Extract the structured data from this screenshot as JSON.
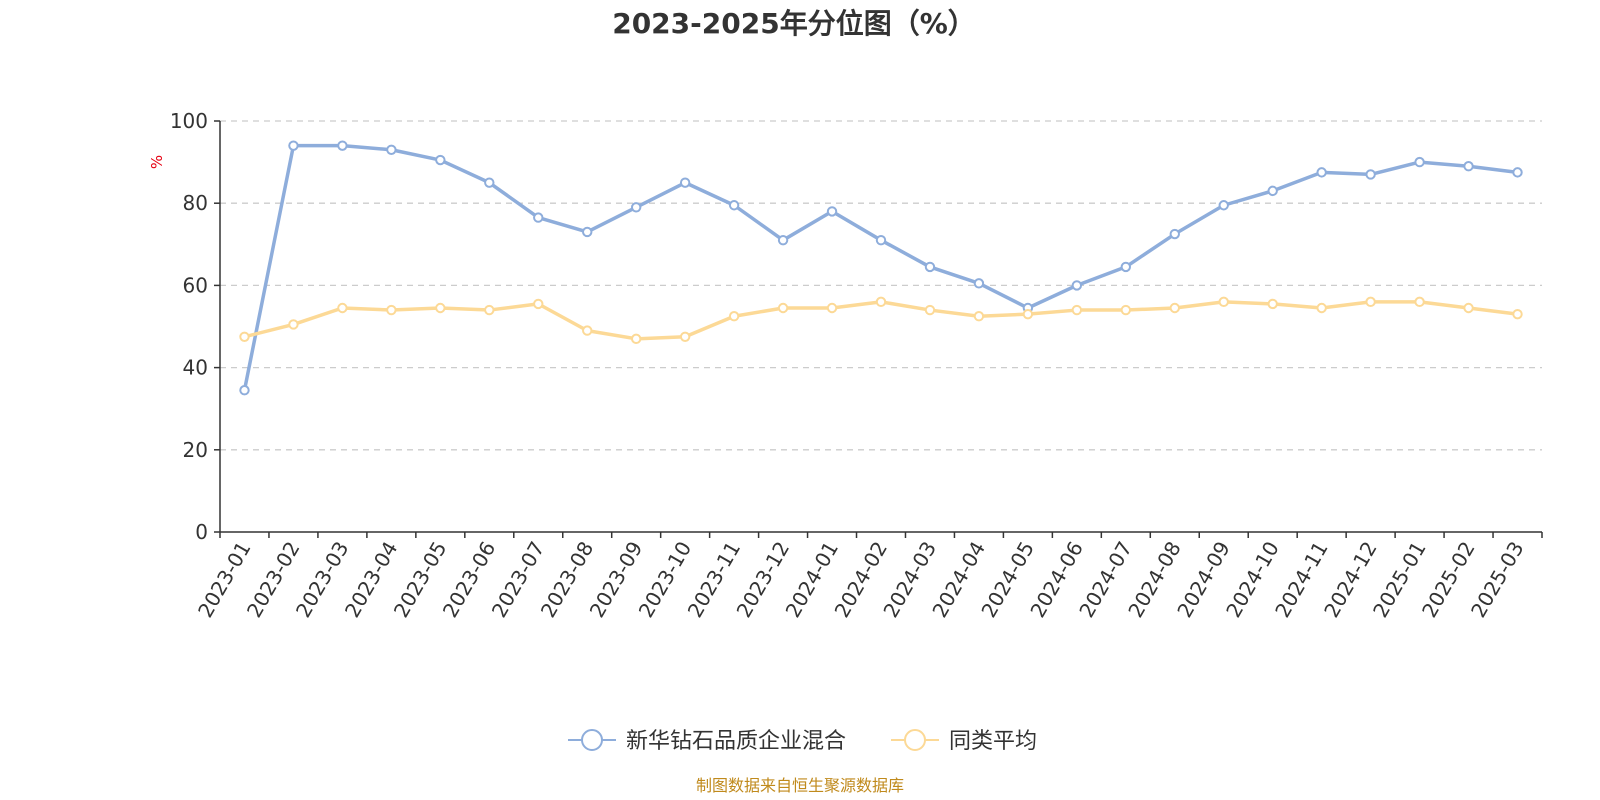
{
  "colors": {
    "series_fund": "#8eaddb",
    "series_avg": "#fcd996",
    "unit": "#e60012",
    "source": "#c08a1c",
    "grid": "#cccccc",
    "axis": "#333333"
  },
  "source_note": "制图数据来自恒生聚源数据库",
  "chart_data": {
    "type": "line",
    "title": "2023-2025年分位图（%）",
    "ylabel": "%",
    "xlabel": "",
    "ylim": [
      0,
      100
    ],
    "yticks": [
      0,
      20,
      40,
      60,
      80,
      100
    ],
    "grid": "horizontal-dashed",
    "legend_position": "bottom-center",
    "categories": [
      "2023-01",
      "2023-02",
      "2023-03",
      "2023-04",
      "2023-05",
      "2023-06",
      "2023-07",
      "2023-08",
      "2023-09",
      "2023-10",
      "2023-11",
      "2023-12",
      "2024-01",
      "2024-02",
      "2024-03",
      "2024-04",
      "2024-05",
      "2024-06",
      "2024-07",
      "2024-08",
      "2024-09",
      "2024-10",
      "2024-11",
      "2024-12",
      "2025-01",
      "2025-02",
      "2025-03"
    ],
    "series": [
      {
        "name": "新华钻石品质企业混合",
        "color_key": "series_fund",
        "values": [
          34.5,
          94,
          94,
          93,
          90.5,
          85,
          76.5,
          73,
          79,
          85,
          79.5,
          71,
          78,
          71,
          64.5,
          60.5,
          54.5,
          60,
          64.5,
          72.5,
          79.5,
          83,
          87.5,
          87,
          90,
          89,
          87.5
        ]
      },
      {
        "name": "同类平均",
        "color_key": "series_avg",
        "values": [
          47.5,
          50.5,
          54.5,
          54,
          54.5,
          54,
          55.5,
          49,
          47,
          47.5,
          52.5,
          54.5,
          54.5,
          56,
          54,
          52.5,
          53,
          54,
          54,
          54.5,
          56,
          55.5,
          54.5,
          56,
          56,
          54.5,
          53
        ]
      }
    ]
  }
}
